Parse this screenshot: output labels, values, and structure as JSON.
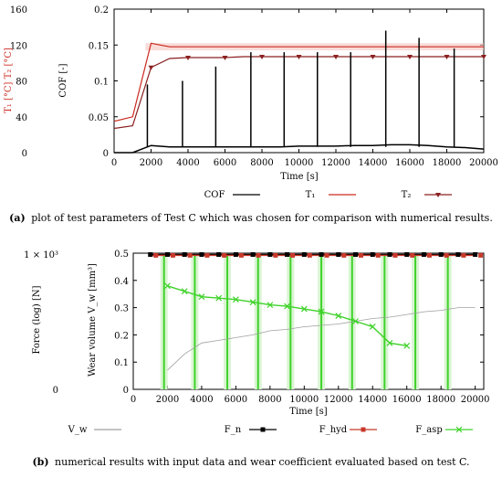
{
  "chart_data": [
    {
      "type": "line",
      "x": [
        0,
        1000,
        2000,
        3000,
        4000,
        5000,
        6000,
        7000,
        8000,
        9000,
        10000,
        11000,
        12000,
        13000,
        14000,
        15000,
        16000,
        17000,
        18000,
        19000,
        20000
      ],
      "xlabel": "Time [s]",
      "xlim": [
        0,
        20000
      ],
      "xticks": [
        "0",
        "2000",
        "4000",
        "6000",
        "8000",
        "10000",
        "12000",
        "14000",
        "16000",
        "18000",
        "20000"
      ],
      "ylabel_left": "T₁ [°C] T₂ [°C]",
      "ylim_left": [
        0,
        160
      ],
      "yticks_left": [
        "0",
        "40",
        "80",
        "120",
        "160"
      ],
      "ylabel_right": "COF [-]",
      "ylim_right": [
        0,
        0.2
      ],
      "yticks_right": [
        "0",
        "0.05",
        "0.1",
        "0.15",
        "0.2"
      ],
      "spikes_x": [
        1800,
        3700,
        5500,
        7400,
        9200,
        11000,
        12800,
        14700,
        16500,
        18400
      ],
      "spikes_cof": [
        0.095,
        0.1,
        0.12,
        0.14,
        0.14,
        0.14,
        0.14,
        0.17,
        0.16,
        0.145
      ],
      "series": [
        {
          "name": "COF",
          "color": "#000000",
          "values": [
            0.0,
            0.0,
            0.01,
            0.008,
            0.008,
            0.008,
            0.008,
            0.008,
            0.008,
            0.008,
            0.009,
            0.009,
            0.009,
            0.01,
            0.01,
            0.011,
            0.011,
            0.01,
            0.008,
            0.007,
            0.005
          ]
        },
        {
          "name": "T₁",
          "color": "#cc2a1f",
          "values": [
            35,
            40,
            122,
            118,
            118,
            118,
            118,
            118,
            118,
            118,
            118,
            118,
            118,
            118,
            118,
            118,
            118,
            118,
            118,
            118,
            118
          ]
        },
        {
          "name": "T₂",
          "color": "#8a2020",
          "values": [
            27,
            30,
            95,
            105,
            106,
            106,
            106,
            107,
            107,
            107,
            107,
            107,
            107,
            107,
            107,
            107,
            107,
            107,
            107,
            107,
            107
          ]
        }
      ],
      "caption_label": "(a)",
      "caption": "plot of test parameters of Test C which was chosen for comparison with numerical results."
    },
    {
      "type": "line",
      "x": [
        0,
        1000,
        2000,
        3000,
        4000,
        5000,
        6000,
        7000,
        8000,
        9000,
        10000,
        11000,
        12000,
        13000,
        14000,
        15000,
        16000,
        17000,
        18000,
        19000,
        20000
      ],
      "xlabel": "Time [s]",
      "xlim": [
        0,
        20500
      ],
      "xticks": [
        "0",
        "2000",
        "4000",
        "6000",
        "8000",
        "10000",
        "12000",
        "14000",
        "16000",
        "18000",
        "20000"
      ],
      "ylabel_left": "Force (log) [N]",
      "yticks_left": [
        "1 × 10³",
        "0"
      ],
      "ylabel_right": "Wear volume V_w [mm³]",
      "ylim_right": [
        0,
        0.5
      ],
      "yticks_right": [
        "0",
        "0.1",
        "0.2",
        "0.3",
        "0.4",
        "0.5"
      ],
      "spikes_x": [
        1800,
        3600,
        5500,
        7300,
        9200,
        11000,
        12800,
        14700,
        16500,
        18400
      ],
      "series": [
        {
          "name": "V_w",
          "color": "#a0a0a0",
          "values": [
            null,
            null,
            0.07,
            0.13,
            0.17,
            0.18,
            0.19,
            0.2,
            0.215,
            0.22,
            0.23,
            0.235,
            0.24,
            0.25,
            0.26,
            0.265,
            0.275,
            0.285,
            0.29,
            0.3,
            0.3
          ]
        },
        {
          "name": "F_n",
          "color": "#000000",
          "values": [
            null,
            0.495,
            0.495,
            0.495,
            0.495,
            0.495,
            0.495,
            0.495,
            0.495,
            0.495,
            0.495,
            0.495,
            0.495,
            0.495,
            0.495,
            0.495,
            0.495,
            0.495,
            0.495,
            0.495,
            0.495
          ]
        },
        {
          "name": "F_hyd",
          "color": "#c8392b",
          "values": [
            null,
            0.492,
            0.492,
            0.492,
            0.492,
            0.492,
            0.492,
            0.492,
            0.492,
            0.492,
            0.492,
            0.492,
            0.492,
            0.492,
            0.492,
            0.492,
            0.492,
            0.492,
            0.492,
            0.492,
            0.492
          ]
        },
        {
          "name": "F_asp",
          "color": "#3fd22a",
          "values": [
            null,
            null,
            0.38,
            0.36,
            0.34,
            0.335,
            0.33,
            0.32,
            0.31,
            0.305,
            0.295,
            0.285,
            0.27,
            0.25,
            0.23,
            0.17,
            0.16,
            null,
            null,
            null,
            null
          ]
        }
      ],
      "caption_label": "(b)",
      "caption": "numerical results with input data and wear coefficient evaluated based on test C."
    }
  ]
}
